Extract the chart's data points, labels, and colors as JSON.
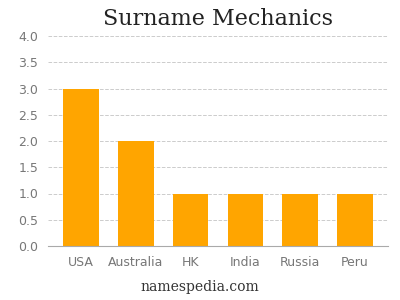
{
  "title": "Surname Mechanics",
  "categories": [
    "USA",
    "Australia",
    "HK",
    "India",
    "Russia",
    "Peru"
  ],
  "values": [
    3,
    2,
    1,
    1,
    1,
    1
  ],
  "bar_color": "#FFA500",
  "ylim": [
    0,
    4
  ],
  "yticks": [
    0,
    0.5,
    1,
    1.5,
    2,
    2.5,
    3,
    3.5,
    4
  ],
  "grid_color": "#cccccc",
  "background_color": "#ffffff",
  "title_fontsize": 16,
  "tick_fontsize": 9,
  "footer_text": "namespedia.com",
  "footer_fontsize": 10,
  "bar_width": 0.65
}
